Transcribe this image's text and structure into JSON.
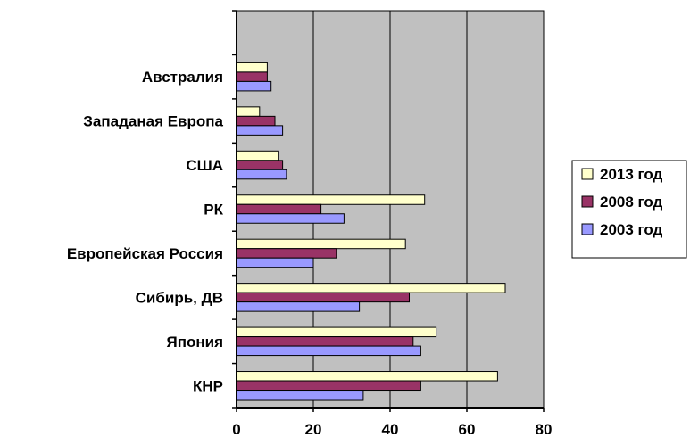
{
  "chart_data": {
    "type": "bar",
    "orientation": "horizontal",
    "categories": [
      "КНР",
      "Япония",
      "Сибирь, ДВ",
      "Европейская Россия",
      "РК",
      "США",
      "Западаная Европа",
      "Австралия"
    ],
    "series": [
      {
        "name": "2003 год",
        "color": "#9999ff",
        "values": [
          33,
          48,
          32,
          20,
          28,
          13,
          12,
          9
        ]
      },
      {
        "name": "2008 год",
        "color": "#993366",
        "values": [
          48,
          46,
          45,
          26,
          22,
          12,
          10,
          8
        ]
      },
      {
        "name": "2013 год",
        "color": "#ffffcc",
        "values": [
          68,
          52,
          70,
          44,
          49,
          11,
          6,
          8
        ]
      }
    ],
    "xlim": [
      0,
      80
    ],
    "xticks": [
      0,
      20,
      40,
      60,
      80
    ],
    "legend_order": [
      "2013 год",
      "2008 год",
      "2003 год"
    ],
    "legend_position": "right",
    "grid": true,
    "plot_background": "#c0c0c0",
    "title": "",
    "xlabel": "",
    "ylabel": ""
  }
}
